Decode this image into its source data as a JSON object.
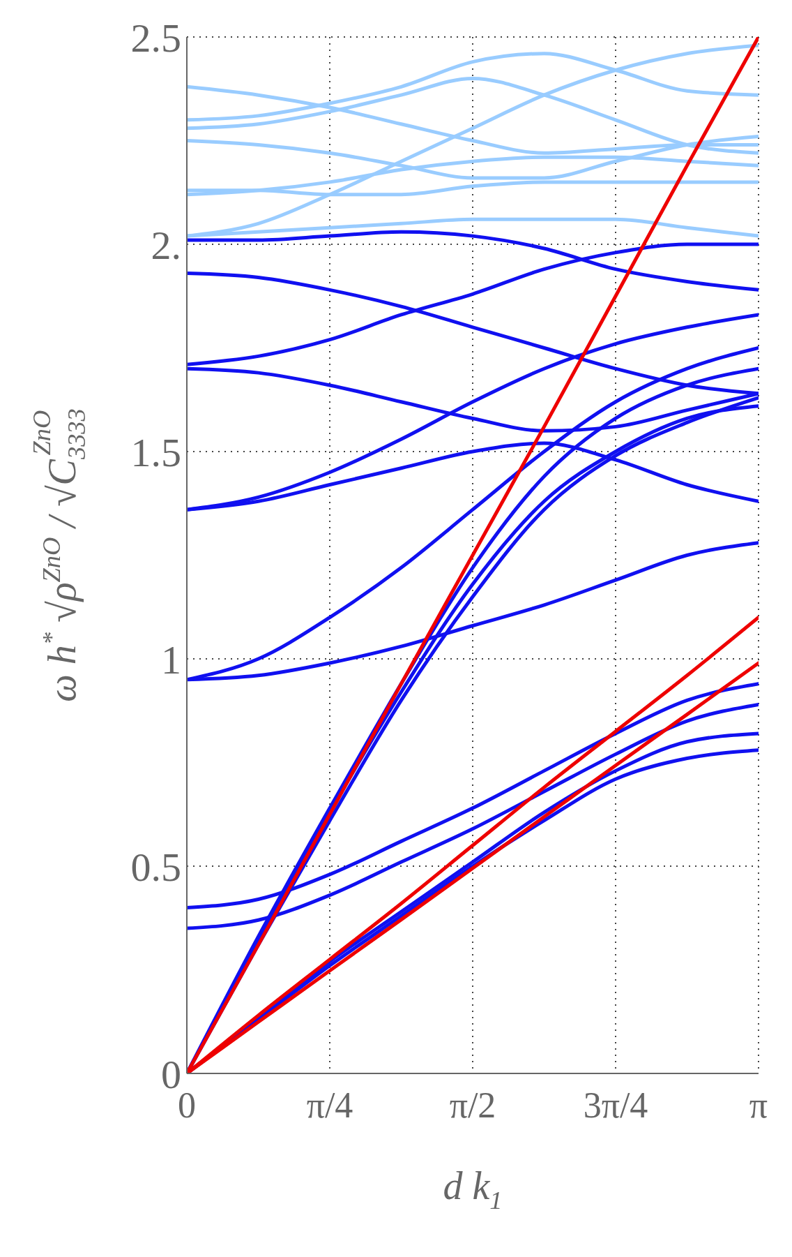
{
  "chart_data": {
    "type": "line",
    "xlabel": "d k$_{1}$",
    "ylabel": "ω h$^{*}$ √ρ$^{ZnO}$ / √C$_{3333}$$^{ZnO}$",
    "x": [
      0,
      0.3927,
      0.7854,
      1.1781,
      1.5708,
      1.9635,
      2.3562,
      2.7489,
      3.1416
    ],
    "xlim": [
      0,
      3.1416
    ],
    "xticks": [
      {
        "value": 0,
        "label": "0"
      },
      {
        "value": 0.7854,
        "label": "π/4"
      },
      {
        "value": 1.5708,
        "label": "π/2"
      },
      {
        "value": 2.3562,
        "label": "3π/4"
      },
      {
        "value": 3.1416,
        "label": "π"
      }
    ],
    "ylim": [
      0,
      2.5
    ],
    "yticks": [
      0,
      0.5,
      {
        "value": 1,
        "label": "1"
      },
      1.5,
      {
        "value": 2,
        "label": "2."
      },
      2.5
    ],
    "grid": true,
    "marker": "none",
    "line_style": "solid",
    "series": [
      {
        "color": "#1010f0",
        "values": [
          0,
          0.13,
          0.26,
          0.38,
          0.5,
          0.61,
          0.71,
          0.76,
          0.78
        ]
      },
      {
        "color": "#1010f0",
        "values": [
          0,
          0.135,
          0.27,
          0.39,
          0.51,
          0.63,
          0.73,
          0.8,
          0.82
        ]
      },
      {
        "color": "#1010f0",
        "values": [
          0.35,
          0.37,
          0.43,
          0.51,
          0.59,
          0.68,
          0.77,
          0.85,
          0.89
        ]
      },
      {
        "color": "#1010f0",
        "values": [
          0.4,
          0.42,
          0.48,
          0.56,
          0.64,
          0.73,
          0.82,
          0.9,
          0.94
        ]
      },
      {
        "color": "#1010f0",
        "values": [
          0,
          0.32,
          0.63,
          0.92,
          1.18,
          1.38,
          1.5,
          1.58,
          1.61
        ]
      },
      {
        "color": "#1010f0",
        "values": [
          0,
          0.31,
          0.61,
          0.9,
          1.15,
          1.36,
          1.49,
          1.57,
          1.63
        ]
      },
      {
        "color": "#1010f0",
        "values": [
          0,
          0.33,
          0.64,
          0.94,
          1.22,
          1.44,
          1.58,
          1.66,
          1.7
        ]
      },
      {
        "color": "#1010f0",
        "values": [
          0.95,
          1,
          1.1,
          1.22,
          1.36,
          1.5,
          1.62,
          1.7,
          1.75
        ]
      },
      {
        "color": "#1010f0",
        "values": [
          0.95,
          0.96,
          0.99,
          1.03,
          1.08,
          1.13,
          1.19,
          1.25,
          1.28
        ]
      },
      {
        "color": "#1010f0",
        "values": [
          1.36,
          1.39,
          1.45,
          1.53,
          1.62,
          1.7,
          1.76,
          1.8,
          1.83
        ]
      },
      {
        "color": "#1010f0",
        "values": [
          1.36,
          1.38,
          1.42,
          1.46,
          1.5,
          1.52,
          1.48,
          1.42,
          1.38
        ]
      },
      {
        "color": "#1010f0",
        "values": [
          1.71,
          1.73,
          1.77,
          1.83,
          1.88,
          1.94,
          1.98,
          2,
          2
        ]
      },
      {
        "color": "#1010f0",
        "values": [
          1.7,
          1.69,
          1.66,
          1.62,
          1.58,
          1.55,
          1.56,
          1.6,
          1.64
        ]
      },
      {
        "color": "#1010f0",
        "values": [
          1.93,
          1.92,
          1.89,
          1.85,
          1.8,
          1.75,
          1.7,
          1.66,
          1.64
        ]
      },
      {
        "color": "#1010f0",
        "values": [
          2.01,
          2.01,
          2.02,
          2.03,
          2.02,
          1.99,
          1.94,
          1.91,
          1.89
        ]
      },
      {
        "color": "#99ccff",
        "values": [
          2.02,
          2.03,
          2.04,
          2.05,
          2.06,
          2.06,
          2.06,
          2.04,
          2.02
        ]
      },
      {
        "color": "#99ccff",
        "values": [
          2.02,
          2.05,
          2.12,
          2.2,
          2.28,
          2.36,
          2.42,
          2.46,
          2.48
        ]
      },
      {
        "color": "#99ccff",
        "values": [
          2.12,
          2.13,
          2.15,
          2.18,
          2.2,
          2.21,
          2.21,
          2.2,
          2.19
        ]
      },
      {
        "color": "#99ccff",
        "values": [
          2.13,
          2.13,
          2.12,
          2.12,
          2.14,
          2.15,
          2.15,
          2.15,
          2.15
        ]
      },
      {
        "color": "#99ccff",
        "values": [
          2.25,
          2.24,
          2.22,
          2.19,
          2.16,
          2.16,
          2.2,
          2.24,
          2.26
        ]
      },
      {
        "color": "#99ccff",
        "values": [
          2.28,
          2.29,
          2.32,
          2.36,
          2.4,
          2.36,
          2.3,
          2.24,
          2.22
        ]
      },
      {
        "color": "#99ccff",
        "values": [
          2.3,
          2.31,
          2.34,
          2.38,
          2.44,
          2.46,
          2.42,
          2.37,
          2.36
        ]
      },
      {
        "color": "#99ccff",
        "values": [
          2.38,
          2.36,
          2.33,
          2.29,
          2.25,
          2.22,
          2.23,
          2.24,
          2.24
        ]
      },
      {
        "color": "#ee0000",
        "values": [
          0,
          0.31,
          0.625,
          0.94,
          1.25,
          1.56,
          1.875,
          2.19,
          2.5
        ]
      },
      {
        "color": "#ee0000",
        "values": [
          0,
          0.14,
          0.275,
          0.41,
          0.55,
          0.69,
          0.825,
          0.96,
          1.1
        ]
      },
      {
        "color": "#ee0000",
        "values": [
          0,
          0.124,
          0.248,
          0.371,
          0.495,
          0.619,
          0.743,
          0.866,
          0.99
        ]
      }
    ]
  }
}
